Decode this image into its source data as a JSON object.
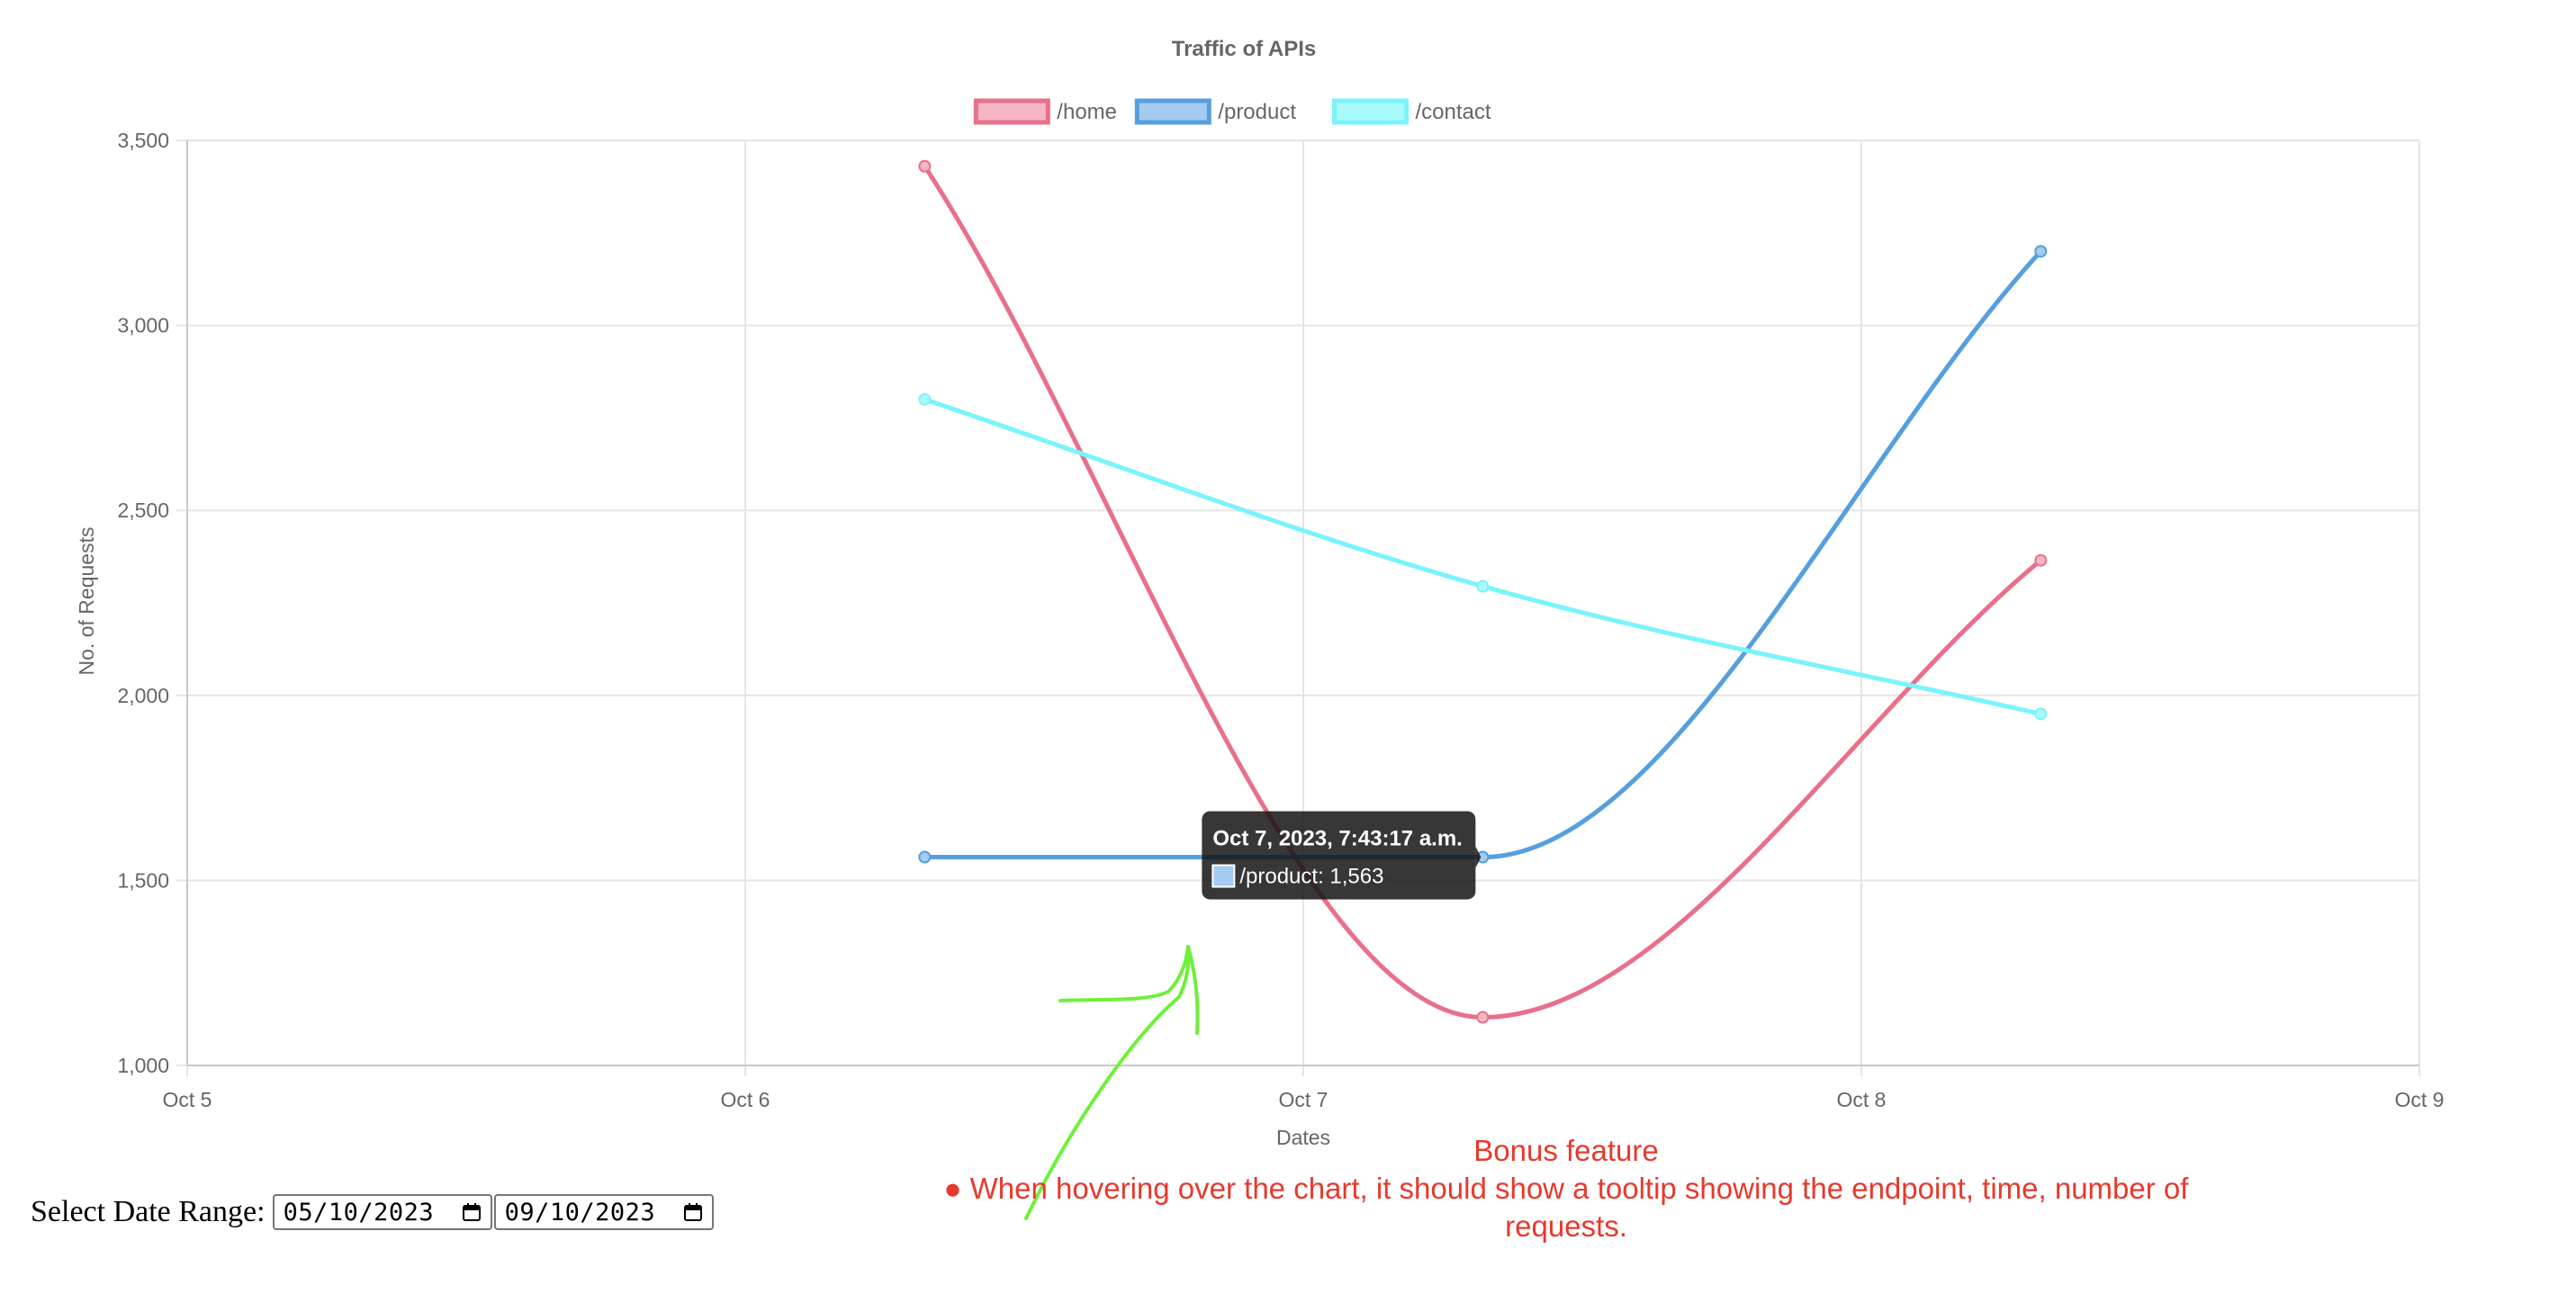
{
  "chart_data": {
    "type": "line",
    "title": "Traffic of APIs",
    "xlabel": "Dates",
    "ylabel": "No. of Requests",
    "x_ticks": [
      "Oct 5",
      "Oct 6",
      "Oct 7",
      "Oct 8",
      "Oct 9"
    ],
    "y_ticks": [
      "1,000",
      "1,500",
      "2,000",
      "2,500",
      "3,000",
      "3,500"
    ],
    "xlim": [
      "2023-10-05T00:00",
      "2023-10-09T00:00"
    ],
    "ylim": [
      1000,
      3500
    ],
    "grid": true,
    "legend_position": "top",
    "series": [
      {
        "name": "/home",
        "color": "#e8708a",
        "fill": "#f5b6c4",
        "points": [
          {
            "x": "2023-10-06T07:43",
            "y": 3430
          },
          {
            "x": "2023-10-07T07:43",
            "y": 1130
          },
          {
            "x": "2023-10-08T07:43",
            "y": 2365
          }
        ]
      },
      {
        "name": "/product",
        "color": "#559fdf",
        "fill": "#a6cbf0",
        "points": [
          {
            "x": "2023-10-06T07:43",
            "y": 1563
          },
          {
            "x": "2023-10-07T07:43",
            "y": 1563
          },
          {
            "x": "2023-10-08T07:43",
            "y": 3200
          }
        ]
      },
      {
        "name": "/contact",
        "color": "#7af4fb",
        "fill": "#a9fafd",
        "points": [
          {
            "x": "2023-10-06T07:43",
            "y": 2800
          },
          {
            "x": "2023-10-07T07:43",
            "y": 2295
          },
          {
            "x": "2023-10-08T07:43",
            "y": 1950
          }
        ]
      }
    ],
    "tooltip": {
      "title": "Oct 7, 2023, 7:43:17 a.m.",
      "body": "/product: 1,563",
      "series_index": 1,
      "point_index": 1
    }
  },
  "date_range": {
    "label": "Select Date Range:",
    "start": "05/10/2023",
    "end": "09/10/2023"
  },
  "annotation": {
    "heading": "Bonus feature",
    "text": "When hovering over the chart, it should show a tooltip showing the endpoint, time, number of requests.",
    "color": "#e8392c",
    "arrow_color": "#6ff03a"
  }
}
